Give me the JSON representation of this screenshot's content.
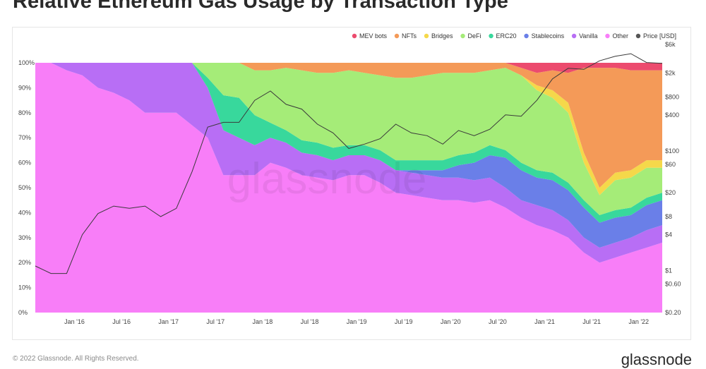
{
  "title": "Relative Ethereum Gas Usage by Transaction Type",
  "footer": {
    "copyright": "© 2022 Glassnode. All Rights Reserved.",
    "logo": "glassnode"
  },
  "watermark": "glassnode",
  "chart_data": {
    "type": "area",
    "stacked": true,
    "normalized": true,
    "title": "Relative Ethereum Gas Usage by Transaction Type",
    "x": [
      "2015-08",
      "2015-10",
      "2015-12",
      "2016-02",
      "2016-04",
      "2016-06",
      "2016-08",
      "2016-10",
      "2016-12",
      "2017-02",
      "2017-04",
      "2017-06",
      "2017-08",
      "2017-10",
      "2017-12",
      "2018-02",
      "2018-04",
      "2018-06",
      "2018-08",
      "2018-10",
      "2018-12",
      "2019-02",
      "2019-04",
      "2019-06",
      "2019-08",
      "2019-10",
      "2019-12",
      "2020-02",
      "2020-04",
      "2020-06",
      "2020-08",
      "2020-10",
      "2020-12",
      "2021-02",
      "2021-04",
      "2021-06",
      "2021-08",
      "2021-10",
      "2021-12",
      "2022-02",
      "2022-04"
    ],
    "x_ticks": [
      "Jan '16",
      "Jul '16",
      "Jan '17",
      "Jul '17",
      "Jan '18",
      "Jul '18",
      "Jan '19",
      "Jul '19",
      "Jan '20",
      "Jul '20",
      "Jan '21",
      "Jul '21",
      "Jan '22"
    ],
    "x_tick_dates": [
      "2016-01",
      "2016-07",
      "2017-01",
      "2017-07",
      "2018-01",
      "2018-07",
      "2019-01",
      "2019-07",
      "2020-01",
      "2020-07",
      "2021-01",
      "2021-07",
      "2022-01"
    ],
    "y_left_ticks": [
      "0%",
      "10%",
      "20%",
      "30%",
      "40%",
      "50%",
      "60%",
      "70%",
      "80%",
      "90%",
      "100%"
    ],
    "ylim_left": [
      0,
      100
    ],
    "y_right_ticks": [
      "$0.20",
      "$0.60",
      "$1",
      "$4",
      "$8",
      "$20",
      "$60",
      "$100",
      "$400",
      "$800",
      "$2k",
      "$6k"
    ],
    "y_right_values": [
      0.2,
      0.6,
      1,
      4,
      8,
      20,
      60,
      100,
      400,
      800,
      2000,
      6000
    ],
    "y_right_scale": "log",
    "ylabel": "",
    "legend_position": "top-right",
    "grid": false,
    "series": [
      {
        "name": "Other",
        "color": "#f87ef8",
        "values": [
          100,
          100,
          97,
          95,
          90,
          88,
          85,
          80,
          80,
          80,
          75,
          70,
          55,
          55,
          55,
          60,
          58,
          55,
          54,
          53,
          55,
          55,
          52,
          48,
          47,
          46,
          45,
          45,
          44,
          45,
          42,
          38,
          35,
          33,
          30,
          24,
          20,
          22,
          24,
          26,
          28
        ]
      },
      {
        "name": "Vanilla",
        "color": "#b86ef5",
        "values": [
          0,
          0,
          3,
          5,
          10,
          12,
          15,
          20,
          20,
          20,
          25,
          20,
          18,
          15,
          12,
          10,
          10,
          9,
          9,
          8,
          8,
          8,
          9,
          9,
          9,
          9,
          9,
          9,
          9,
          9,
          8,
          7,
          8,
          8,
          7,
          6,
          6,
          6,
          6,
          7,
          7
        ]
      },
      {
        "name": "Stablecoins",
        "color": "#6a7fe8",
        "values": [
          0,
          0,
          0,
          0,
          0,
          0,
          0,
          0,
          0,
          0,
          0,
          0,
          0,
          0,
          0,
          0,
          0,
          0,
          0,
          0,
          0,
          0,
          0,
          0,
          1,
          2,
          3,
          5,
          7,
          9,
          12,
          12,
          11,
          12,
          12,
          12,
          10,
          10,
          9,
          10,
          10
        ]
      },
      {
        "name": "ERC20",
        "color": "#38d89c",
        "values": [
          0,
          0,
          0,
          0,
          0,
          0,
          0,
          0,
          0,
          0,
          0,
          4,
          14,
          16,
          12,
          6,
          5,
          5,
          5,
          5,
          4,
          4,
          4,
          4,
          4,
          4,
          4,
          4,
          4,
          4,
          3,
          3,
          3,
          3,
          3,
          3,
          3,
          3,
          3,
          3,
          3
        ]
      },
      {
        "name": "DeFi",
        "color": "#a5ec78",
        "values": [
          0,
          0,
          0,
          0,
          0,
          0,
          0,
          0,
          0,
          0,
          0,
          6,
          13,
          14,
          18,
          21,
          25,
          28,
          28,
          30,
          30,
          29,
          30,
          33,
          33,
          34,
          35,
          33,
          32,
          30,
          33,
          35,
          32,
          30,
          28,
          15,
          8,
          12,
          12,
          12,
          10
        ]
      },
      {
        "name": "Bridges",
        "color": "#f5d84a",
        "values": [
          0,
          0,
          0,
          0,
          0,
          0,
          0,
          0,
          0,
          0,
          0,
          0,
          0,
          0,
          0,
          0,
          0,
          0,
          0,
          0,
          0,
          0,
          0,
          0,
          0,
          0,
          0,
          0,
          0,
          0,
          0,
          0,
          2,
          3,
          4,
          4,
          3,
          3,
          3,
          3,
          3
        ]
      },
      {
        "name": "NFTs",
        "color": "#f49a58",
        "values": [
          0,
          0,
          0,
          0,
          0,
          0,
          0,
          0,
          0,
          0,
          0,
          0,
          0,
          0,
          3,
          3,
          2,
          3,
          4,
          4,
          3,
          4,
          5,
          6,
          6,
          5,
          4,
          4,
          4,
          3,
          2,
          3,
          5,
          8,
          12,
          34,
          48,
          42,
          40,
          36,
          36
        ]
      },
      {
        "name": "MEV bots",
        "color": "#ec4b6e",
        "values": [
          0,
          0,
          0,
          0,
          0,
          0,
          0,
          0,
          0,
          0,
          0,
          0,
          0,
          0,
          0,
          0,
          0,
          0,
          0,
          0,
          0,
          0,
          0,
          0,
          0,
          0,
          0,
          0,
          0,
          0,
          0,
          2,
          4,
          3,
          4,
          2,
          2,
          2,
          3,
          3,
          3
        ]
      }
    ],
    "price_series": {
      "name": "Price [USD]",
      "color": "#555555",
      "axis": "right",
      "values": [
        1.2,
        0.9,
        0.9,
        4,
        9,
        12,
        11,
        12,
        8,
        11,
        45,
        250,
        300,
        300,
        700,
        1000,
        600,
        500,
        280,
        200,
        110,
        130,
        160,
        280,
        200,
        180,
        130,
        220,
        180,
        230,
        400,
        380,
        700,
        1600,
        2400,
        2300,
        3200,
        3800,
        4200,
        3000,
        2900
      ]
    }
  }
}
